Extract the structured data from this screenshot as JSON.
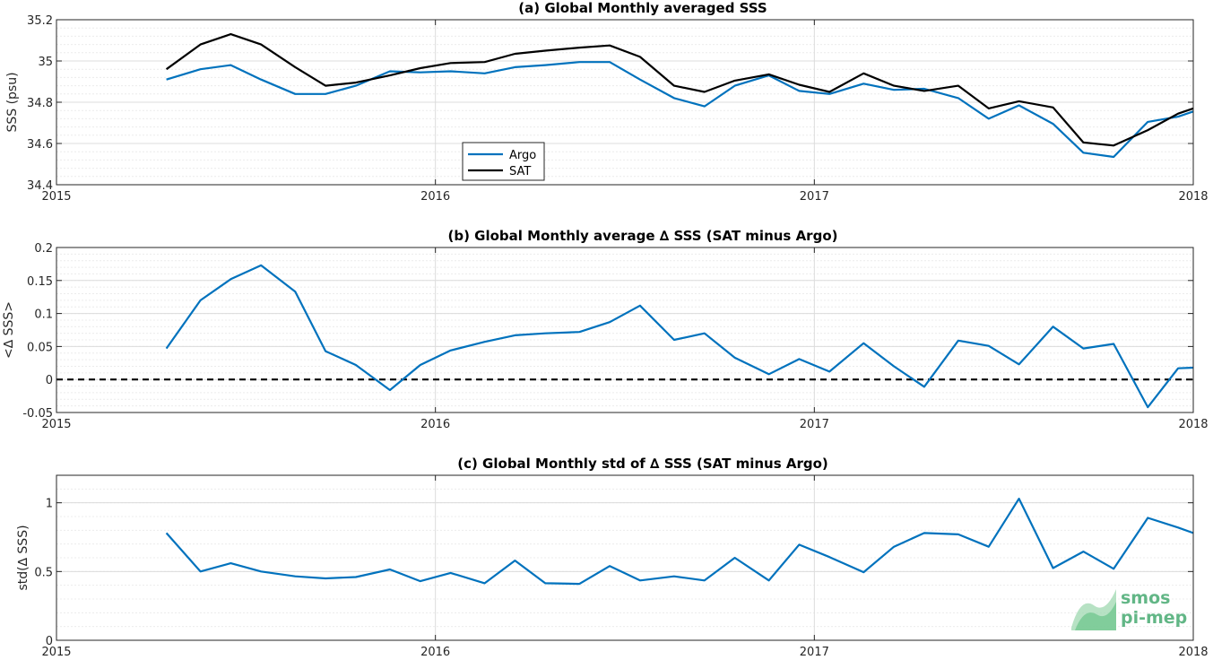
{
  "colors": {
    "argo": "#0072BD",
    "sat": "#000000",
    "grid": "#d9d9d9",
    "axis": "#262626"
  },
  "logo": {
    "line1": "smos",
    "line2": "pi-mep",
    "color": "#2e9e5e"
  },
  "chart_data": [
    {
      "type": "line",
      "title": "(a) Global Monthly averaged SSS",
      "ylabel": "SSS (psu)",
      "xlabel": "",
      "xlim": [
        2015,
        2018
      ],
      "ylim": [
        34.4,
        35.2
      ],
      "xticks": [
        2015,
        2016,
        2017,
        2018
      ],
      "xtick_labels": [
        "2015",
        "2016",
        "2017",
        "2018"
      ],
      "yticks": [
        34.4,
        34.6,
        34.8,
        35,
        35.2
      ],
      "ytick_labels": [
        "34.4",
        "34.6",
        "34.8",
        "35",
        "35.2"
      ],
      "grid": true,
      "minor_grid": true,
      "legend": "bottom-left",
      "series": [
        {
          "name": "Argo",
          "color": "#0072BD",
          "x": [
            2015.29,
            2015.38,
            2015.46,
            2015.54,
            2015.63,
            2015.71,
            2015.79,
            2015.88,
            2015.96,
            2016.04,
            2016.13,
            2016.21,
            2016.29,
            2016.38,
            2016.46,
            2016.54,
            2016.63,
            2016.71,
            2016.79,
            2016.88,
            2016.96,
            2017.04,
            2017.13,
            2017.21,
            2017.29,
            2017.38,
            2017.46,
            2017.54,
            2017.63,
            2017.71,
            2017.79,
            2017.88,
            2017.96,
            2018.0
          ],
          "values": [
            34.91,
            34.96,
            34.98,
            34.91,
            34.84,
            34.84,
            34.88,
            34.95,
            34.945,
            34.95,
            34.94,
            34.97,
            34.98,
            34.995,
            34.995,
            34.91,
            34.82,
            34.78,
            34.88,
            34.93,
            34.855,
            34.84,
            34.89,
            34.86,
            34.865,
            34.82,
            34.72,
            34.785,
            34.695,
            34.555,
            34.535,
            34.705,
            34.73,
            34.755
          ]
        },
        {
          "name": "SAT",
          "color": "#000000",
          "x": [
            2015.29,
            2015.38,
            2015.46,
            2015.54,
            2015.63,
            2015.71,
            2015.79,
            2015.88,
            2015.96,
            2016.04,
            2016.13,
            2016.21,
            2016.29,
            2016.38,
            2016.46,
            2016.54,
            2016.63,
            2016.71,
            2016.79,
            2016.88,
            2016.96,
            2017.04,
            2017.13,
            2017.21,
            2017.29,
            2017.38,
            2017.46,
            2017.54,
            2017.63,
            2017.71,
            2017.79,
            2017.88,
            2017.96,
            2018.0
          ],
          "values": [
            34.96,
            35.08,
            35.13,
            35.08,
            34.97,
            34.88,
            34.895,
            34.93,
            34.965,
            34.99,
            34.995,
            35.035,
            35.05,
            35.065,
            35.075,
            35.02,
            34.88,
            34.85,
            34.905,
            34.935,
            34.885,
            34.85,
            34.94,
            34.88,
            34.855,
            34.88,
            34.77,
            34.805,
            34.775,
            34.605,
            34.59,
            34.665,
            34.745,
            34.77
          ]
        }
      ]
    },
    {
      "type": "line",
      "title": "(b) Global Monthly average ∆ SSS (SAT minus Argo)",
      "ylabel": "<∆ SSS>",
      "xlabel": "",
      "xlim": [
        2015,
        2018
      ],
      "ylim": [
        -0.05,
        0.2
      ],
      "xticks": [
        2015,
        2016,
        2017,
        2018
      ],
      "xtick_labels": [
        "2015",
        "2016",
        "2017",
        "2018"
      ],
      "yticks": [
        -0.05,
        0,
        0.05,
        0.1,
        0.15,
        0.2
      ],
      "ytick_labels": [
        "-0.05",
        "0",
        "0.05",
        "0.1",
        "0.15",
        "0.2"
      ],
      "grid": true,
      "minor_grid": true,
      "reference_line": {
        "y": 0,
        "style": "dashed",
        "color": "#000000"
      },
      "series": [
        {
          "name": "",
          "color": "#0072BD",
          "x": [
            2015.29,
            2015.38,
            2015.46,
            2015.54,
            2015.63,
            2015.71,
            2015.79,
            2015.88,
            2015.96,
            2016.04,
            2016.13,
            2016.21,
            2016.29,
            2016.38,
            2016.46,
            2016.54,
            2016.63,
            2016.71,
            2016.79,
            2016.88,
            2016.96,
            2017.04,
            2017.13,
            2017.21,
            2017.29,
            2017.38,
            2017.46,
            2017.54,
            2017.63,
            2017.71,
            2017.79,
            2017.88,
            2017.96,
            2018.0
          ],
          "values": [
            0.047,
            0.12,
            0.152,
            0.173,
            0.133,
            0.043,
            0.022,
            -0.016,
            0.022,
            0.044,
            0.057,
            0.067,
            0.07,
            0.072,
            0.087,
            0.112,
            0.06,
            0.07,
            0.033,
            0.008,
            0.031,
            0.012,
            0.055,
            0.02,
            -0.011,
            0.059,
            0.051,
            0.023,
            0.08,
            0.047,
            0.054,
            -0.042,
            0.017,
            0.018
          ]
        }
      ]
    },
    {
      "type": "line",
      "title": "(c) Global Monthly std of ∆ SSS (SAT minus Argo)",
      "ylabel": "std(∆ SSS)",
      "xlabel": "",
      "xlim": [
        2015,
        2018
      ],
      "ylim": [
        0,
        1.2
      ],
      "xticks": [
        2015,
        2016,
        2017,
        2018
      ],
      "xtick_labels": [
        "2015",
        "2016",
        "2017",
        "2018"
      ],
      "yticks": [
        0,
        0.5,
        1
      ],
      "ytick_labels": [
        "0",
        "0.5",
        "1"
      ],
      "grid": true,
      "minor_grid": true,
      "series": [
        {
          "name": "",
          "color": "#0072BD",
          "x": [
            2015.29,
            2015.38,
            2015.46,
            2015.54,
            2015.63,
            2015.71,
            2015.79,
            2015.88,
            2015.96,
            2016.04,
            2016.13,
            2016.21,
            2016.29,
            2016.38,
            2016.46,
            2016.54,
            2016.63,
            2016.71,
            2016.79,
            2016.88,
            2016.96,
            2017.04,
            2017.13,
            2017.21,
            2017.29,
            2017.38,
            2017.46,
            2017.54,
            2017.63,
            2017.71,
            2017.79,
            2017.88,
            2017.96,
            2018.0
          ],
          "values": [
            0.78,
            0.5,
            0.56,
            0.5,
            0.465,
            0.45,
            0.46,
            0.515,
            0.43,
            0.49,
            0.415,
            0.58,
            0.415,
            0.41,
            0.54,
            0.435,
            0.465,
            0.435,
            0.6,
            0.435,
            0.695,
            0.605,
            0.495,
            0.68,
            0.78,
            0.77,
            0.68,
            1.03,
            0.525,
            0.645,
            0.52,
            0.89,
            0.82,
            0.78
          ]
        }
      ]
    }
  ]
}
